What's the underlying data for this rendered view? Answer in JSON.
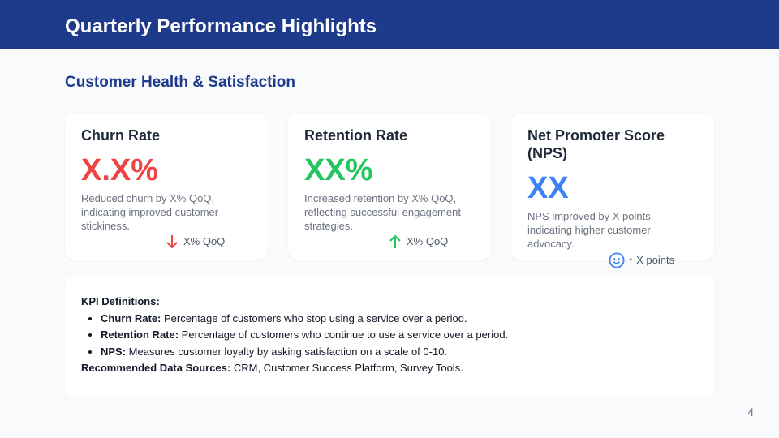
{
  "header": {
    "title": "Quarterly Performance Highlights"
  },
  "section_title": "Customer Health & Satisfaction",
  "cards": [
    {
      "title": "Churn Rate",
      "value": "X.X%",
      "color": "#ef4444",
      "desc": "Reduced churn by X% QoQ, indicating improved customer stickiness.",
      "trend": "X% QoQ",
      "icon": "arrow-down-icon"
    },
    {
      "title": "Retention Rate",
      "value": "XX%",
      "color": "#22c55e",
      "desc": "Increased retention by X% QoQ, reflecting successful engagement strategies.",
      "trend": "X% QoQ",
      "icon": "arrow-up-icon"
    },
    {
      "title": "Net Promoter Score (NPS)",
      "value": "XX",
      "color": "#3b82f6",
      "desc": "NPS improved by X points, indicating higher customer advocacy.",
      "trend": "↑ X points",
      "icon": "smiley-icon"
    }
  ],
  "definitions": {
    "heading": "KPI Definitions:",
    "items": [
      {
        "term": "Churn Rate:",
        "text": " Percentage of customers who stop using a service over a period."
      },
      {
        "term": "Retention Rate:",
        "text": " Percentage of customers who continue to use a service over a period."
      },
      {
        "term": "NPS:",
        "text": " Measures customer loyalty by asking satisfaction on a scale of 0-10."
      }
    ],
    "sources_label": "Recommended Data Sources:",
    "sources": " CRM, Customer Success Platform, Survey Tools."
  },
  "page_number": "4"
}
